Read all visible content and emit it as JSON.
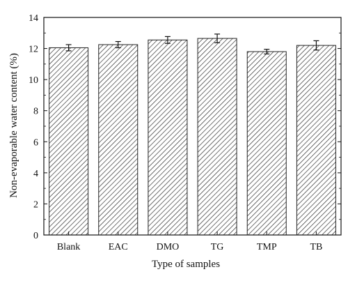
{
  "chart_data": {
    "type": "bar",
    "xlabel": "Type of samples",
    "ylabel": "Non-evaporable water content (%)",
    "categories": [
      "Blank",
      "EAC",
      "DMO",
      "TG",
      "TMP",
      "TB"
    ],
    "values": [
      12.05,
      12.25,
      12.55,
      12.65,
      11.8,
      12.2
    ],
    "errors": [
      0.2,
      0.2,
      0.22,
      0.28,
      0.15,
      0.3
    ],
    "ylim": [
      0,
      14
    ],
    "yticks": [
      0,
      2,
      4,
      6,
      8,
      10,
      12,
      14
    ],
    "bar_fill": "hatched",
    "grid": false
  }
}
